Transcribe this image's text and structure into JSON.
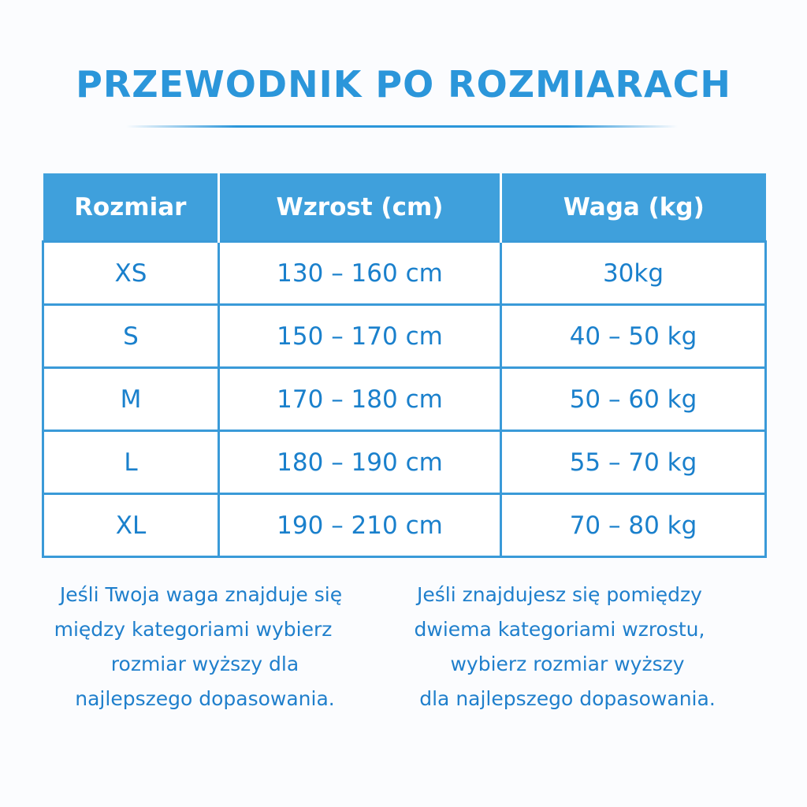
{
  "title": "PRZEWODNIK PO ROZMIARACH",
  "table": {
    "headers": [
      "Rozmiar",
      "Wzrost (cm)",
      "Waga (kg)"
    ],
    "rows": [
      [
        "XS",
        "130 – 160 cm",
        "30kg"
      ],
      [
        "S",
        "150 – 170 cm",
        "40 – 50 kg"
      ],
      [
        "M",
        "170 – 180 cm",
        "50 – 60 kg"
      ],
      [
        "L",
        "180 – 190 cm",
        "55 – 70 kg"
      ],
      [
        "XL",
        "190 – 210 cm",
        "70 – 80 kg"
      ]
    ]
  },
  "notes": {
    "left": [
      "Jeśli Twoja waga znajduje się",
      "między kategoriami wybierz",
      "rozmiar wyższy dla",
      "najlepszego dopasowania."
    ],
    "right": [
      "Jeśli znajdujesz się pomiędzy",
      "dwiema kategoriami wzrostu,",
      "wybierz rozmiar wyższy",
      "dla najlepszego dopasowania."
    ]
  },
  "colors": {
    "accent": "#3fa0dc",
    "text": "#1a80cc",
    "title": "#2b96da"
  }
}
